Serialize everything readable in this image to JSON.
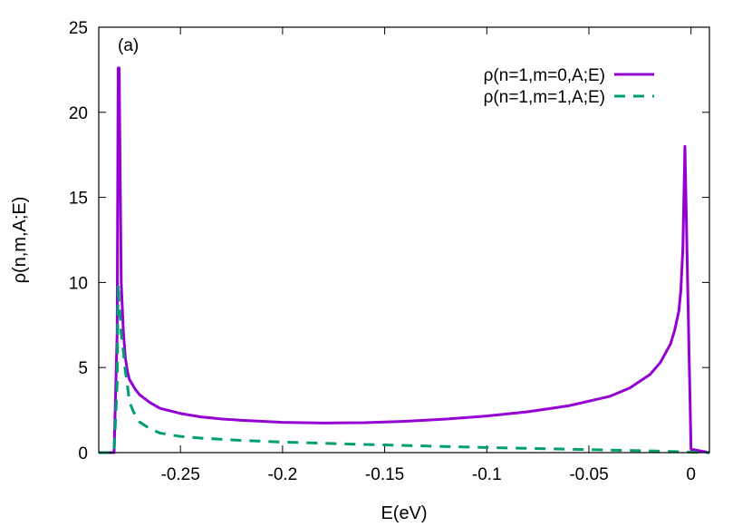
{
  "chart_data": {
    "type": "line",
    "panel_label": "(a)",
    "xlabel": "E(eV)",
    "ylabel": "ρ(n,m,A;E)",
    "xlim": [
      -0.29,
      0.009
    ],
    "ylim": [
      0,
      25
    ],
    "xticks": [
      -0.25,
      -0.2,
      -0.15,
      -0.1,
      -0.05,
      0
    ],
    "xtick_labels": [
      "-0.25",
      "-0.2",
      "-0.15",
      "-0.1",
      "-0.05",
      "0"
    ],
    "yticks": [
      0,
      5,
      10,
      15,
      20,
      25
    ],
    "ytick_labels": [
      "0",
      "5",
      "10",
      "15",
      "20",
      "25"
    ],
    "grid": false,
    "legend_position": "top-right",
    "series": [
      {
        "name": "ρ(n=1,m=0,A;E)",
        "color": "#9400d3",
        "style": "solid",
        "points": [
          [
            -0.29,
            0
          ],
          [
            -0.2825,
            0
          ],
          [
            -0.281,
            7.0
          ],
          [
            -0.2805,
            22.6
          ],
          [
            -0.28,
            22.6
          ],
          [
            -0.279,
            10.0
          ],
          [
            -0.278,
            7.2
          ],
          [
            -0.277,
            5.6
          ],
          [
            -0.276,
            4.8
          ],
          [
            -0.275,
            4.3
          ],
          [
            -0.272,
            3.7
          ],
          [
            -0.27,
            3.4
          ],
          [
            -0.265,
            2.95
          ],
          [
            -0.26,
            2.6
          ],
          [
            -0.25,
            2.3
          ],
          [
            -0.24,
            2.1
          ],
          [
            -0.23,
            1.98
          ],
          [
            -0.22,
            1.9
          ],
          [
            -0.2,
            1.78
          ],
          [
            -0.18,
            1.74
          ],
          [
            -0.16,
            1.76
          ],
          [
            -0.14,
            1.84
          ],
          [
            -0.12,
            1.97
          ],
          [
            -0.1,
            2.15
          ],
          [
            -0.08,
            2.4
          ],
          [
            -0.06,
            2.75
          ],
          [
            -0.04,
            3.3
          ],
          [
            -0.03,
            3.8
          ],
          [
            -0.02,
            4.6
          ],
          [
            -0.015,
            5.3
          ],
          [
            -0.01,
            6.4
          ],
          [
            -0.008,
            7.2
          ],
          [
            -0.006,
            8.3
          ],
          [
            -0.005,
            9.5
          ],
          [
            -0.004,
            12.0
          ],
          [
            -0.003,
            18.0
          ],
          [
            -0.0015,
            9.0
          ],
          [
            0.0,
            0.2
          ],
          [
            0.009,
            0
          ]
        ]
      },
      {
        "name": "ρ(n=1,m=1,A;E)",
        "color": "#009e73",
        "style": "dashed",
        "points": [
          [
            -0.29,
            0
          ],
          [
            -0.2825,
            0
          ],
          [
            -0.281,
            4.0
          ],
          [
            -0.2805,
            9.9
          ],
          [
            -0.28,
            8.7
          ],
          [
            -0.2795,
            8.0
          ],
          [
            -0.279,
            7.0
          ],
          [
            -0.278,
            6.0
          ],
          [
            -0.277,
            4.8
          ],
          [
            -0.276,
            4.0
          ],
          [
            -0.275,
            3.0
          ],
          [
            -0.273,
            2.4
          ],
          [
            -0.27,
            1.8
          ],
          [
            -0.265,
            1.4
          ],
          [
            -0.26,
            1.15
          ],
          [
            -0.25,
            0.95
          ],
          [
            -0.24,
            0.85
          ],
          [
            -0.22,
            0.72
          ],
          [
            -0.2,
            0.62
          ],
          [
            -0.18,
            0.55
          ],
          [
            -0.16,
            0.48
          ],
          [
            -0.14,
            0.42
          ],
          [
            -0.12,
            0.36
          ],
          [
            -0.1,
            0.3
          ],
          [
            -0.08,
            0.25
          ],
          [
            -0.06,
            0.2
          ],
          [
            -0.04,
            0.15
          ],
          [
            -0.02,
            0.1
          ],
          [
            -0.01,
            0.07
          ],
          [
            0.0,
            0.03
          ],
          [
            0.009,
            0
          ]
        ]
      }
    ]
  }
}
